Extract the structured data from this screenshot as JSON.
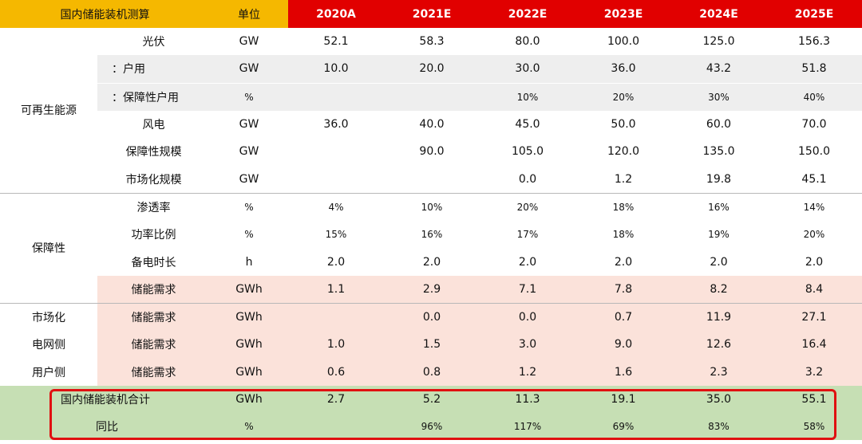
{
  "header": {
    "title": "国内储能装机测算",
    "unit": "单位",
    "years": [
      "2020A",
      "2021E",
      "2022E",
      "2023E",
      "2024E",
      "2025E"
    ]
  },
  "groups": {
    "renewable": "可再生能源",
    "guarantee": "保障性",
    "market": "市场化",
    "grid": "电网侧",
    "user": "用户侧"
  },
  "rows": [
    {
      "label": "光伏",
      "unit": "GW",
      "values": [
        "52.1",
        "58.3",
        "80.0",
        "100.0",
        "125.0",
        "156.3"
      ]
    },
    {
      "label": "：户用",
      "unit": "GW",
      "values": [
        "10.0",
        "20.0",
        "30.0",
        "36.0",
        "43.2",
        "51.8"
      ]
    },
    {
      "label": "：保障性户用",
      "unit": "%",
      "values": [
        "",
        "",
        "10%",
        "20%",
        "30%",
        "40%"
      ]
    },
    {
      "label": "风电",
      "unit": "GW",
      "values": [
        "36.0",
        "40.0",
        "45.0",
        "50.0",
        "60.0",
        "70.0"
      ]
    },
    {
      "label": "保障性规模",
      "unit": "GW",
      "values": [
        "",
        "90.0",
        "105.0",
        "120.0",
        "135.0",
        "150.0"
      ]
    },
    {
      "label": "市场化规模",
      "unit": "GW",
      "values": [
        "",
        "",
        "0.0",
        "1.2",
        "19.8",
        "45.1"
      ]
    },
    {
      "label": "渗透率",
      "unit": "%",
      "values": [
        "4%",
        "10%",
        "20%",
        "18%",
        "16%",
        "14%"
      ]
    },
    {
      "label": "功率比例",
      "unit": "%",
      "values": [
        "15%",
        "16%",
        "17%",
        "18%",
        "19%",
        "20%"
      ]
    },
    {
      "label": "备电时长",
      "unit": "h",
      "values": [
        "2.0",
        "2.0",
        "2.0",
        "2.0",
        "2.0",
        "2.0"
      ]
    },
    {
      "label": "储能需求",
      "unit": "GWh",
      "values": [
        "1.1",
        "2.9",
        "7.1",
        "7.8",
        "8.2",
        "8.4"
      ]
    },
    {
      "label": "储能需求",
      "unit": "GWh",
      "values": [
        "",
        "0.0",
        "0.0",
        "0.7",
        "11.9",
        "27.1"
      ]
    },
    {
      "label": "储能需求",
      "unit": "GWh",
      "values": [
        "1.0",
        "1.5",
        "3.0",
        "9.0",
        "12.6",
        "16.4"
      ]
    },
    {
      "label": "储能需求",
      "unit": "GWh",
      "values": [
        "0.6",
        "0.8",
        "1.2",
        "1.6",
        "2.3",
        "3.2"
      ]
    },
    {
      "label": "国内储能装机合计",
      "unit": "GWh",
      "values": [
        "2.7",
        "5.2",
        "11.3",
        "19.1",
        "35.0",
        "55.1"
      ]
    },
    {
      "label": "同比",
      "unit": "%",
      "values": [
        "",
        "96%",
        "117%",
        "69%",
        "83%",
        "58%"
      ]
    }
  ],
  "colors": {
    "header_yellow": "#f5b800",
    "header_red": "#e10000",
    "pink_fill": "#fbe2da",
    "grey_fill": "#eeeeee",
    "green_fill": "#c6dfb4",
    "highlight_border": "#e01010"
  }
}
